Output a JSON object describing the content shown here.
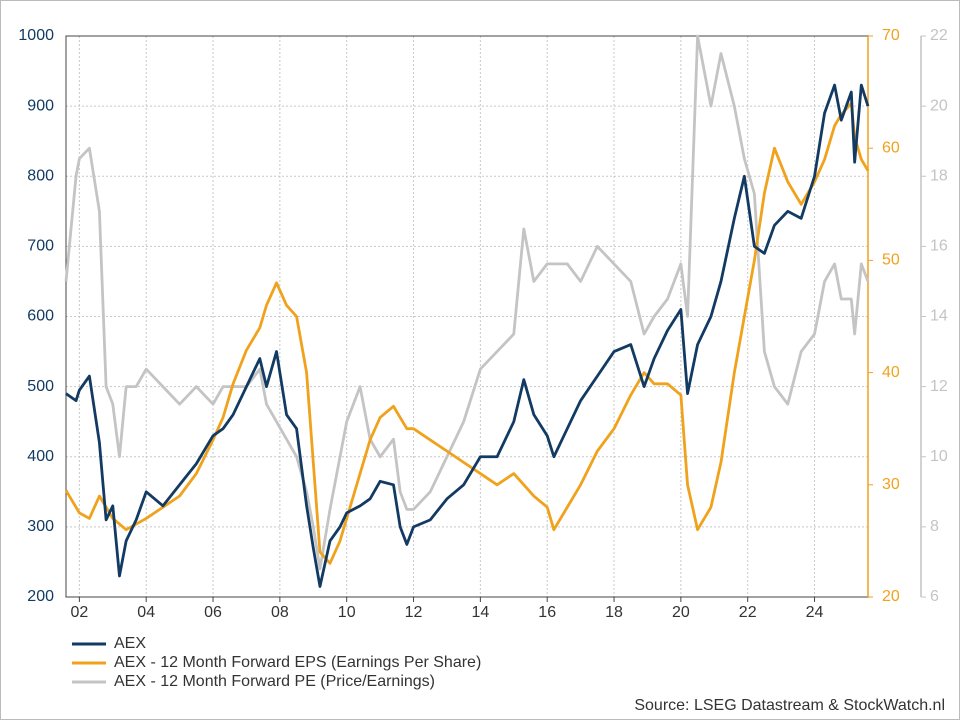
{
  "chart_data": {
    "type": "line",
    "source": "Source: LSEG Datastream & StockWatch.nl",
    "x": [
      2001.6,
      2001.9,
      2002.0,
      2002.3,
      2002.6,
      2002.8,
      2003.0,
      2003.2,
      2003.4,
      2003.7,
      2004.0,
      2004.5,
      2005.0,
      2005.5,
      2006.0,
      2006.3,
      2006.6,
      2007.0,
      2007.4,
      2007.6,
      2007.9,
      2008.2,
      2008.5,
      2008.8,
      2009.0,
      2009.2,
      2009.5,
      2009.8,
      2010.0,
      2010.4,
      2010.7,
      2011.0,
      2011.4,
      2011.6,
      2011.8,
      2012.0,
      2012.5,
      2013.0,
      2013.5,
      2014.0,
      2014.5,
      2015.0,
      2015.3,
      2015.6,
      2016.0,
      2016.2,
      2016.6,
      2017.0,
      2017.5,
      2018.0,
      2018.5,
      2018.9,
      2019.2,
      2019.6,
      2020.0,
      2020.2,
      2020.5,
      2020.9,
      2021.2,
      2021.6,
      2021.9,
      2022.2,
      2022.5,
      2022.8,
      2023.2,
      2023.6,
      2024.0,
      2024.3,
      2024.6,
      2024.8,
      2025.1,
      2025.2,
      2025.4,
      2025.6
    ],
    "xlim": [
      2001.6,
      2025.6
    ],
    "xticks": [
      {
        "value": 2002,
        "label": "02"
      },
      {
        "value": 2004,
        "label": "04"
      },
      {
        "value": 2006,
        "label": "06"
      },
      {
        "value": 2008,
        "label": "08"
      },
      {
        "value": 2010,
        "label": "10"
      },
      {
        "value": 2012,
        "label": "12"
      },
      {
        "value": 2014,
        "label": "14"
      },
      {
        "value": 2016,
        "label": "16"
      },
      {
        "value": 2018,
        "label": "18"
      },
      {
        "value": 2020,
        "label": "20"
      },
      {
        "value": 2022,
        "label": "22"
      },
      {
        "value": 2024,
        "label": "24"
      }
    ],
    "ylim": [
      200,
      1000
    ],
    "yticks": [
      200,
      300,
      400,
      500,
      600,
      700,
      800,
      900,
      1000
    ],
    "y2lim": [
      20,
      70
    ],
    "y2ticks": [
      20,
      30,
      40,
      50,
      60,
      70
    ],
    "y3lim": [
      6,
      22
    ],
    "y3ticks": [
      6,
      8,
      10,
      12,
      14,
      16,
      18,
      20,
      22
    ],
    "grid": true,
    "series": [
      {
        "name": "AEX",
        "color": "#123a63",
        "axis": "y",
        "values": [
          490,
          480,
          495,
          515,
          420,
          310,
          330,
          230,
          280,
          310,
          350,
          330,
          360,
          390,
          430,
          440,
          460,
          500,
          540,
          500,
          550,
          460,
          440,
          330,
          270,
          215,
          280,
          300,
          320,
          330,
          340,
          365,
          360,
          300,
          275,
          300,
          310,
          340,
          360,
          400,
          400,
          450,
          510,
          460,
          430,
          400,
          440,
          480,
          515,
          550,
          560,
          500,
          540,
          580,
          610,
          490,
          560,
          600,
          650,
          740,
          800,
          700,
          690,
          730,
          750,
          740,
          800,
          890,
          930,
          880,
          920,
          820,
          930,
          900
        ]
      },
      {
        "name": "AEX - 12 Month Forward EPS (Earnings Per Share)",
        "color": "#f0a21c",
        "axis": "y2",
        "values": [
          29.5,
          28,
          27.5,
          27,
          29,
          28,
          27,
          26.5,
          26,
          26.5,
          27,
          28,
          29,
          31,
          34,
          36,
          39,
          42,
          44,
          46,
          48,
          46,
          45,
          40,
          32,
          24,
          23,
          25,
          27,
          31,
          34,
          36,
          37,
          36,
          35,
          35,
          34,
          33,
          32,
          31,
          30,
          31,
          30,
          29,
          28,
          26,
          28,
          30,
          33,
          35,
          38,
          40,
          39,
          39,
          38,
          30,
          26,
          28,
          32,
          40,
          45,
          50,
          56,
          60,
          57,
          55,
          57,
          59,
          62,
          63,
          64,
          61,
          59,
          58
        ]
      },
      {
        "name": "AEX - 12 Month Forward PE (Price/Earnings)",
        "color": "#c4c4c4",
        "axis": "y3",
        "values": [
          15,
          18,
          18.5,
          18.8,
          17,
          12,
          11.5,
          10,
          12,
          12,
          12.5,
          12,
          11.5,
          12,
          11.5,
          12,
          12,
          12,
          12.5,
          11.5,
          11,
          10.5,
          10,
          9,
          8,
          6.8,
          8.5,
          10,
          11,
          12,
          10.5,
          10,
          10.5,
          9,
          8.5,
          8.5,
          9,
          10,
          11,
          12.5,
          13,
          13.5,
          16.5,
          15,
          15.5,
          15.5,
          15.5,
          15,
          16,
          15.5,
          15,
          13.5,
          14,
          14.5,
          15.5,
          14,
          22,
          20,
          21.5,
          20,
          18.5,
          17.5,
          13,
          12,
          11.5,
          13,
          13.5,
          15,
          15.5,
          14.5,
          14.5,
          13.5,
          15.5,
          15
        ]
      }
    ]
  }
}
